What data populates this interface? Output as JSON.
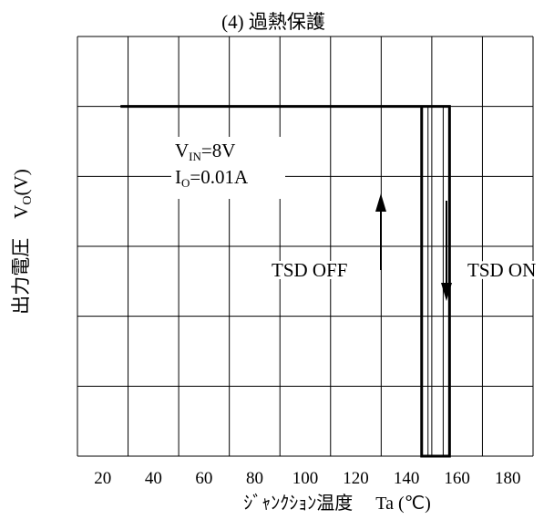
{
  "chart_data": {
    "type": "line",
    "title": "(4)  過熱保護",
    "ylabel": "出力電圧　V",
    "ylabel_sub": "O",
    "ylabel_unit": "(V)",
    "xlabel": "ｼﾞｬﾝｸｼｮﾝ温度　 Ta (℃)",
    "x_ticks": [
      "20",
      "40",
      "60",
      "80",
      "100",
      "120",
      "140",
      "160",
      "180"
    ],
    "xlim": [
      10,
      190
    ],
    "ylim": [
      0,
      6
    ],
    "grid": true,
    "series": [
      {
        "x": [
          27,
          146,
          146,
          157,
          157,
          27
        ],
        "y": [
          5,
          5,
          0,
          0,
          5,
          5
        ]
      }
    ],
    "annotations": {
      "vin_main": "V",
      "vin_sub": "IN",
      "vin_rest": "=8V",
      "io_main": "I",
      "io_sub": "O",
      "io_rest": "=0.01A",
      "tsd_off": "TSD OFF",
      "tsd_on": "TSD ON"
    },
    "arrows": [
      {
        "label": "TSD OFF",
        "direction": "up"
      },
      {
        "label": "TSD ON",
        "direction": "down"
      }
    ],
    "colors": {
      "line": "#000000",
      "grid": "#000000"
    }
  }
}
